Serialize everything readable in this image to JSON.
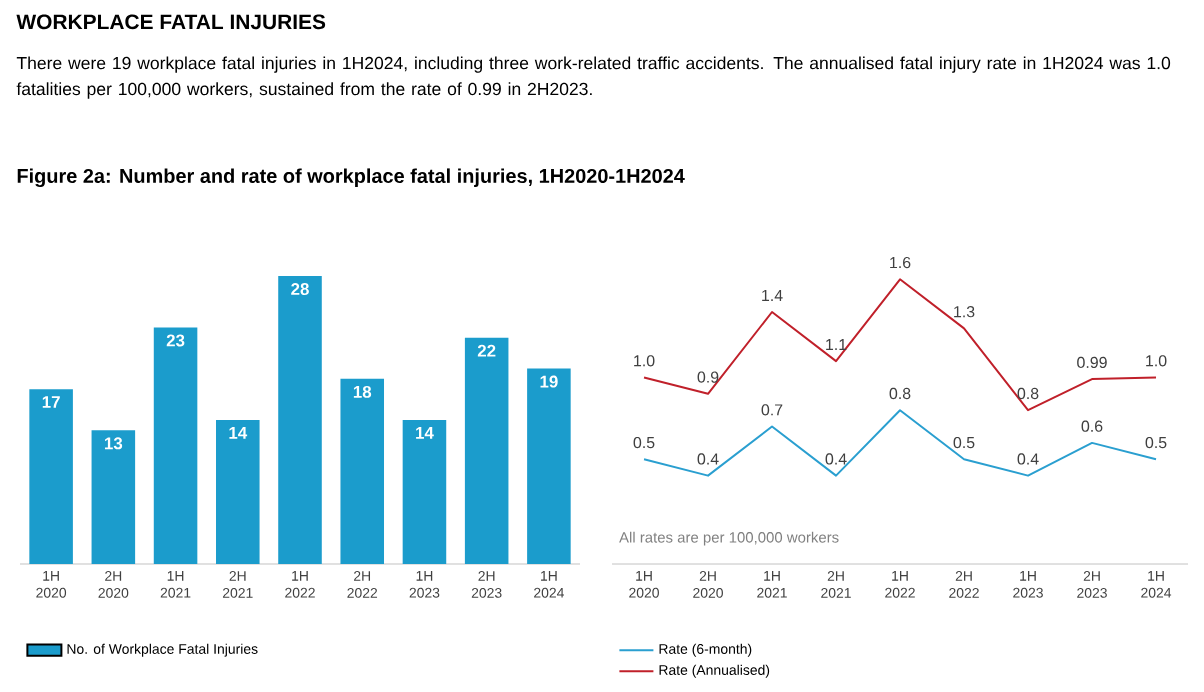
{
  "chart_data": [
    {
      "type": "bar",
      "title": "WORKPLACE FATAL INJURIES",
      "subtitle": "There were 19 workplace fatal injuries in 1H2024, including three work-related traffic accidents. The annualised fatal injury rate in 1H2024 was 1.0 fatalities per 100,000 workers, sustained from the rate of 0.99 in 2H2023.",
      "annotations": [
        "Figure 2a: Number and rate of workplace fatal injuries, 1H2020-1H2024"
      ],
      "categories": [
        "1H 2020",
        "2H 2020",
        "1H 2021",
        "2H 2021",
        "1H 2022",
        "2H 2022",
        "1H 2023",
        "2H 2023",
        "1H 2024"
      ],
      "series": [
        {
          "name": "No. of Workplace Fatal Injuries",
          "color": "#1b9ccc",
          "values": [
            17,
            13,
            23,
            14,
            28,
            18,
            14,
            22,
            19
          ]
        }
      ],
      "data_labels": true,
      "legend": "bottom"
    },
    {
      "type": "line",
      "annotations": [
        "All rates are per 100,000 workers"
      ],
      "categories": [
        "1H 2020",
        "2H 2020",
        "1H 2021",
        "2H 2021",
        "1H 2022",
        "2H 2022",
        "1H 2023",
        "2H 2023",
        "1H 2024"
      ],
      "series": [
        {
          "name": "Rate (6-month)",
          "color": "#2a9fd0",
          "values": [
            0.5,
            0.4,
            0.7,
            0.4,
            0.8,
            0.5,
            0.4,
            0.6,
            0.5
          ],
          "value_labels": [
            "0.5",
            "0.4",
            "0.7",
            "0.4",
            "0.8",
            "0.5",
            "0.4",
            "0.6",
            "0.5"
          ]
        },
        {
          "name": "Rate (Annualised)",
          "color": "#c0202a",
          "values": [
            1.0,
            0.9,
            1.4,
            1.1,
            1.6,
            1.3,
            0.8,
            0.99,
            1.0
          ],
          "value_labels": [
            "1.0",
            "0.9",
            "1.4",
            "1.1",
            "1.6",
            "1.3",
            "0.8",
            "0.99",
            "1.0"
          ]
        }
      ],
      "marker": "none",
      "line_style": "solid",
      "legend": "bottom"
    }
  ]
}
